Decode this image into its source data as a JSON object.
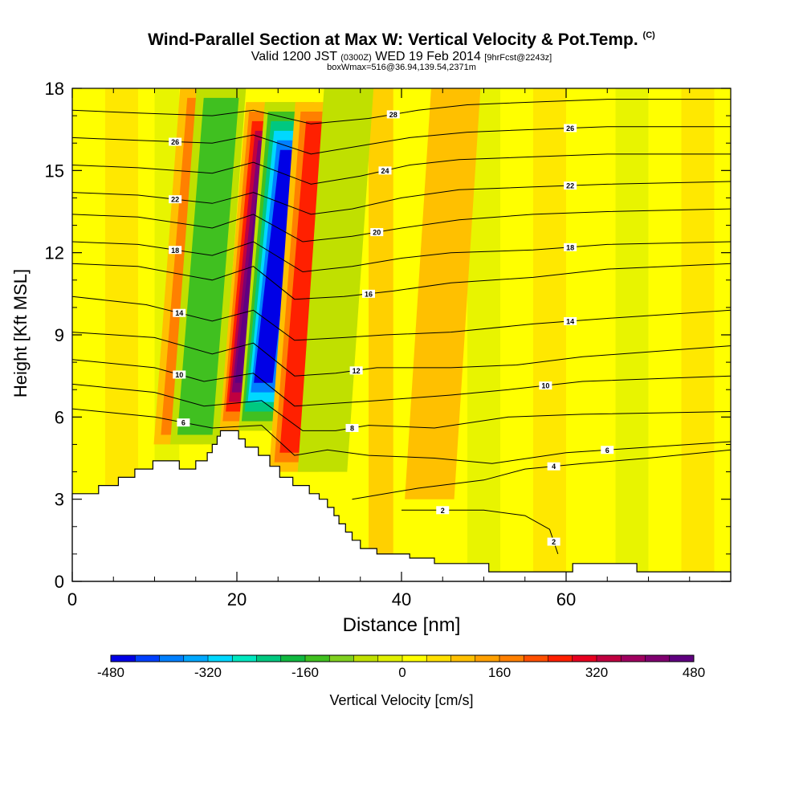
{
  "title": "Wind-Parallel Section at Max W: Vertical Velocity & Pot.Temp.",
  "title_mark": "(C)",
  "subtitle_valid": "Valid 1200 JST",
  "subtitle_utc": "(0300Z)",
  "subtitle_date": "WED 19 Feb 2014",
  "subtitle_fcst": "[9hrFcst@2243z]",
  "subtitle_box": "boxWmax=516@36.94,139.54,2371m",
  "chart_data": {
    "type": "heatmap",
    "xlabel": "Distance [nm]",
    "ylabel": "Height [Kft MSL]",
    "xlim": [
      0,
      80
    ],
    "ylim": [
      0,
      18
    ],
    "xticks": [
      "0",
      "20",
      "40",
      "60"
    ],
    "yticks": [
      "0",
      "3",
      "6",
      "9",
      "12",
      "15",
      "18"
    ],
    "colorbar": {
      "label": "Vertical Velocity [cm/s]",
      "min": -480,
      "max": 480,
      "step": 40,
      "tick_labels": [
        "-480",
        "-320",
        "-160",
        "0",
        "160",
        "320",
        "480"
      ],
      "colors": [
        "#0000e6",
        "#0040ff",
        "#0080ff",
        "#00a8ff",
        "#00d8ff",
        "#00e8c0",
        "#00c880",
        "#10b840",
        "#40c020",
        "#80d020",
        "#c0e000",
        "#e0f000",
        "#ffff00",
        "#ffe000",
        "#ffc000",
        "#ffa000",
        "#ff8000",
        "#ff5000",
        "#ff2000",
        "#e80020",
        "#c00040",
        "#a00060",
        "#800070",
        "#600080"
      ]
    },
    "vertical_velocity_features": [
      {
        "x": 14.5,
        "height_range": [
          5,
          18
        ],
        "w": 180
      },
      {
        "x": 16.5,
        "height_range": [
          5,
          18
        ],
        "w": -200
      },
      {
        "x": 22.5,
        "height_range": [
          5.5,
          17.5
        ],
        "w": 480
      },
      {
        "x": 24.8,
        "height_range": [
          5.5,
          17.5
        ],
        "w": -480
      },
      {
        "x": 28.5,
        "height_range": [
          4,
          17.5
        ],
        "w": 300
      },
      {
        "x": 32,
        "height_range": [
          4,
          18
        ],
        "w": -140
      },
      {
        "x": 45,
        "height_range": [
          3,
          18
        ],
        "w": 120
      }
    ],
    "terrain": [
      [
        0,
        3.2
      ],
      [
        3.2,
        3.2
      ],
      [
        3.2,
        3.5
      ],
      [
        5.6,
        3.5
      ],
      [
        5.6,
        3.8
      ],
      [
        7.6,
        3.8
      ],
      [
        7.6,
        4.1
      ],
      [
        9.8,
        4.1
      ],
      [
        9.8,
        4.4
      ],
      [
        13,
        4.4
      ],
      [
        13,
        4.1
      ],
      [
        15,
        4.1
      ],
      [
        15,
        4.4
      ],
      [
        16.4,
        4.4
      ],
      [
        16.4,
        4.7
      ],
      [
        17,
        4.7
      ],
      [
        17,
        5.0
      ],
      [
        17.6,
        5.0
      ],
      [
        17.6,
        5.3
      ],
      [
        18,
        5.3
      ],
      [
        18,
        5.5
      ],
      [
        20.2,
        5.5
      ],
      [
        20.2,
        5.2
      ],
      [
        21,
        5.2
      ],
      [
        21,
        4.9
      ],
      [
        22.6,
        4.9
      ],
      [
        22.6,
        4.6
      ],
      [
        24,
        4.6
      ],
      [
        24,
        4.2
      ],
      [
        25.2,
        4.2
      ],
      [
        25.2,
        3.8
      ],
      [
        26.8,
        3.8
      ],
      [
        26.8,
        3.5
      ],
      [
        28.8,
        3.5
      ],
      [
        28.8,
        3.2
      ],
      [
        30,
        3.2
      ],
      [
        30,
        3.0
      ],
      [
        31,
        3.0
      ],
      [
        31,
        2.7
      ],
      [
        31.8,
        2.7
      ],
      [
        31.8,
        2.4
      ],
      [
        32.4,
        2.4
      ],
      [
        32.4,
        2.1
      ],
      [
        33.2,
        2.1
      ],
      [
        33.2,
        1.8
      ],
      [
        34,
        1.8
      ],
      [
        34,
        1.5
      ],
      [
        35,
        1.5
      ],
      [
        35,
        1.2
      ],
      [
        37,
        1.2
      ],
      [
        37,
        1.0
      ],
      [
        41,
        1.0
      ],
      [
        41,
        0.85
      ],
      [
        44,
        0.85
      ],
      [
        44,
        0.65
      ],
      [
        50.6,
        0.65
      ],
      [
        50.6,
        0.35
      ],
      [
        60.8,
        0.35
      ],
      [
        60.8,
        0.65
      ],
      [
        68.6,
        0.65
      ],
      [
        68.6,
        0.35
      ],
      [
        80,
        0.35
      ]
    ],
    "isentropes": [
      {
        "label": "2",
        "points": [
          [
            40,
            2.6
          ],
          [
            50,
            2.6
          ],
          [
            55,
            2.4
          ],
          [
            58,
            1.9
          ],
          [
            59,
            1.0
          ]
        ]
      },
      {
        "label": "4",
        "points": [
          [
            34,
            3.0
          ],
          [
            42,
            3.4
          ],
          [
            50,
            3.7
          ],
          [
            55,
            4.1
          ],
          [
            62,
            4.3
          ],
          [
            70,
            4.5
          ],
          [
            80,
            4.8
          ]
        ]
      },
      {
        "label": "6",
        "points": [
          [
            0,
            6.3
          ],
          [
            10,
            6.0
          ],
          [
            17,
            5.6
          ],
          [
            23,
            5.7
          ],
          [
            27,
            4.6
          ],
          [
            31,
            4.8
          ],
          [
            36,
            4.6
          ],
          [
            44,
            4.5
          ],
          [
            51,
            4.3
          ],
          [
            60,
            4.7
          ],
          [
            70,
            4.9
          ],
          [
            80,
            5.1
          ]
        ]
      },
      {
        "label": "8",
        "points": [
          [
            0,
            7.2
          ],
          [
            10,
            6.9
          ],
          [
            16,
            6.4
          ],
          [
            23,
            6.6
          ],
          [
            28,
            5.5
          ],
          [
            32,
            5.5
          ],
          [
            36,
            5.7
          ],
          [
            44,
            5.6
          ],
          [
            53,
            6.0
          ],
          [
            62,
            6.1
          ],
          [
            80,
            6.2
          ]
        ]
      },
      {
        "label": "10",
        "points": [
          [
            0,
            8.1
          ],
          [
            10,
            7.8
          ],
          [
            16,
            7.3
          ],
          [
            22,
            7.6
          ],
          [
            27,
            6.4
          ],
          [
            32,
            6.5
          ],
          [
            37,
            6.6
          ],
          [
            46,
            6.8
          ],
          [
            53,
            7.0
          ],
          [
            62,
            7.3
          ],
          [
            80,
            7.5
          ]
        ]
      },
      {
        "label": "12",
        "points": [
          [
            0,
            9.1
          ],
          [
            10,
            8.9
          ],
          [
            17,
            8.3
          ],
          [
            22,
            8.7
          ],
          [
            27,
            7.5
          ],
          [
            32,
            7.6
          ],
          [
            37,
            7.8
          ],
          [
            46,
            7.8
          ],
          [
            54,
            7.9
          ],
          [
            62,
            8.2
          ],
          [
            80,
            8.6
          ]
        ]
      },
      {
        "label": "14",
        "points": [
          [
            0,
            10.4
          ],
          [
            9,
            10.1
          ],
          [
            17,
            9.5
          ],
          [
            22,
            9.9
          ],
          [
            27,
            8.8
          ],
          [
            33,
            8.9
          ],
          [
            38,
            9.0
          ],
          [
            46,
            9.1
          ],
          [
            56,
            9.4
          ],
          [
            65,
            9.6
          ],
          [
            80,
            9.9
          ]
        ]
      },
      {
        "label": "16",
        "points": [
          [
            0,
            11.6
          ],
          [
            8,
            11.5
          ],
          [
            17,
            11.0
          ],
          [
            22,
            11.5
          ],
          [
            27,
            10.3
          ],
          [
            33,
            10.4
          ],
          [
            39,
            10.6
          ],
          [
            46,
            10.9
          ],
          [
            56,
            11.1
          ],
          [
            65,
            11.4
          ],
          [
            80,
            11.6
          ]
        ]
      },
      {
        "label": "18",
        "points": [
          [
            0,
            12.4
          ],
          [
            8,
            12.3
          ],
          [
            17,
            11.9
          ],
          [
            22,
            12.4
          ],
          [
            28,
            11.3
          ],
          [
            34,
            11.5
          ],
          [
            40,
            11.8
          ],
          [
            46,
            12.0
          ],
          [
            56,
            12.1
          ],
          [
            65,
            12.3
          ],
          [
            80,
            12.4
          ]
        ]
      },
      {
        "label": "20",
        "points": [
          [
            0,
            13.4
          ],
          [
            8,
            13.3
          ],
          [
            17,
            12.9
          ],
          [
            22,
            13.4
          ],
          [
            28,
            12.4
          ],
          [
            34,
            12.6
          ],
          [
            40,
            12.9
          ],
          [
            47,
            13.2
          ],
          [
            56,
            13.4
          ],
          [
            65,
            13.5
          ],
          [
            80,
            13.6
          ]
        ]
      },
      {
        "label": "22",
        "points": [
          [
            0,
            14.2
          ],
          [
            8,
            14.1
          ],
          [
            17,
            13.8
          ],
          [
            22,
            14.2
          ],
          [
            29,
            13.4
          ],
          [
            34,
            13.6
          ],
          [
            40,
            14.0
          ],
          [
            47,
            14.3
          ],
          [
            56,
            14.4
          ],
          [
            65,
            14.5
          ],
          [
            80,
            14.6
          ]
        ]
      },
      {
        "label": "24",
        "points": [
          [
            0,
            15.2
          ],
          [
            8,
            15.1
          ],
          [
            17,
            14.9
          ],
          [
            22,
            15.3
          ],
          [
            29,
            14.5
          ],
          [
            35,
            14.8
          ],
          [
            41,
            15.2
          ],
          [
            47,
            15.4
          ],
          [
            56,
            15.5
          ],
          [
            65,
            15.6
          ],
          [
            80,
            15.6
          ]
        ]
      },
      {
        "label": "26",
        "points": [
          [
            0,
            16.2
          ],
          [
            8,
            16.1
          ],
          [
            17,
            16.0
          ],
          [
            22,
            16.3
          ],
          [
            29,
            15.6
          ],
          [
            35,
            15.9
          ],
          [
            41,
            16.2
          ],
          [
            48,
            16.4
          ],
          [
            56,
            16.5
          ],
          [
            65,
            16.6
          ],
          [
            80,
            16.6
          ]
        ]
      },
      {
        "label": "28",
        "points": [
          [
            0,
            17.2
          ],
          [
            8,
            17.1
          ],
          [
            17,
            17.0
          ],
          [
            22,
            17.2
          ],
          [
            29,
            16.7
          ],
          [
            36,
            16.9
          ],
          [
            42,
            17.2
          ],
          [
            48,
            17.4
          ],
          [
            56,
            17.5
          ],
          [
            65,
            17.6
          ],
          [
            80,
            17.6
          ]
        ]
      }
    ]
  }
}
